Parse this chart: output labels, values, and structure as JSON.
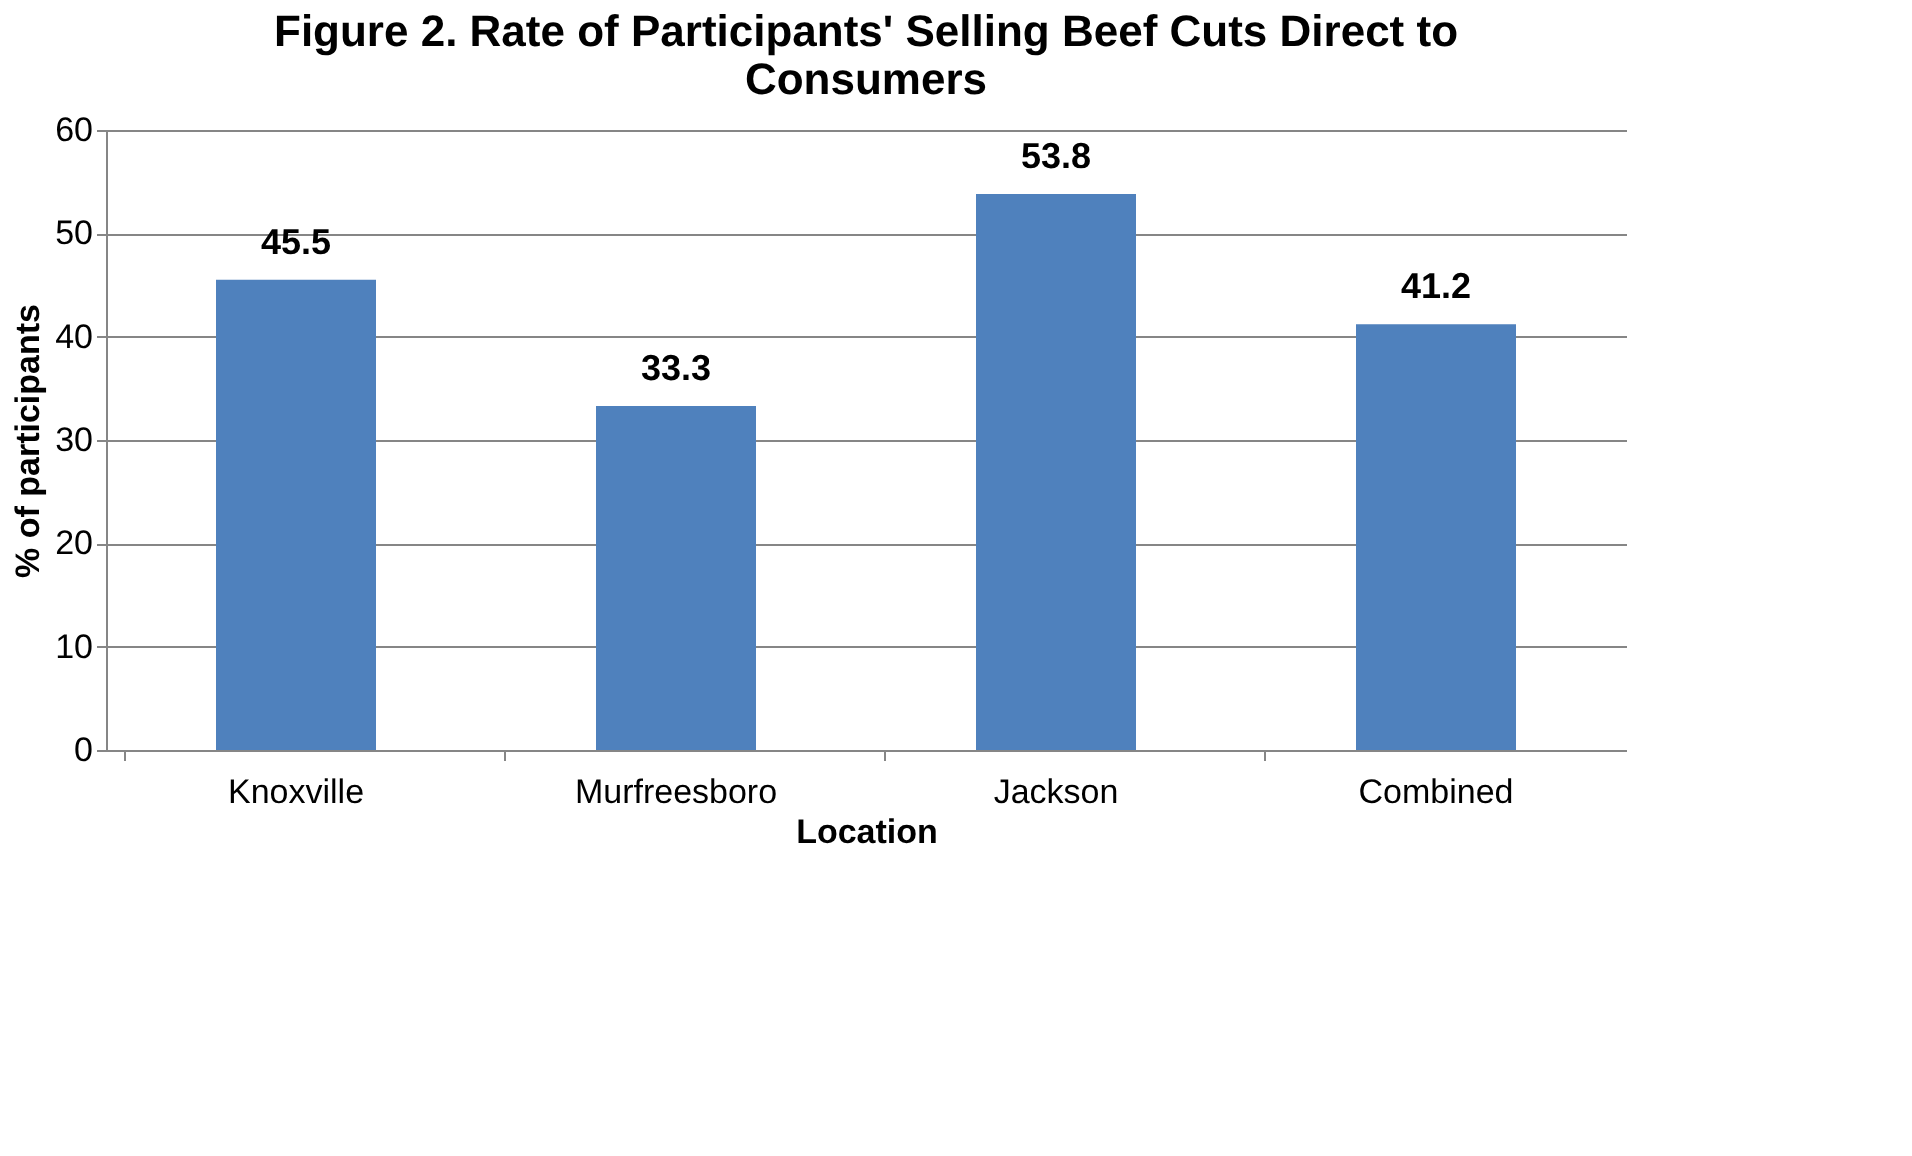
{
  "chart_data": {
    "type": "bar",
    "title": "Figure 2. Rate of Participants' Selling  Beef Cuts Direct to Consumers",
    "xlabel": "Location",
    "ylabel": "% of participants",
    "categories": [
      "Knoxville",
      "Murfreesboro",
      "Jackson",
      "Combined"
    ],
    "values": [
      45.5,
      33.3,
      53.8,
      41.2
    ],
    "color": "#4f81bd",
    "ylim": [
      0,
      60
    ],
    "yticks": [
      0,
      10,
      20,
      30,
      40,
      50,
      60
    ],
    "grid": "y",
    "data_labels": true
  }
}
